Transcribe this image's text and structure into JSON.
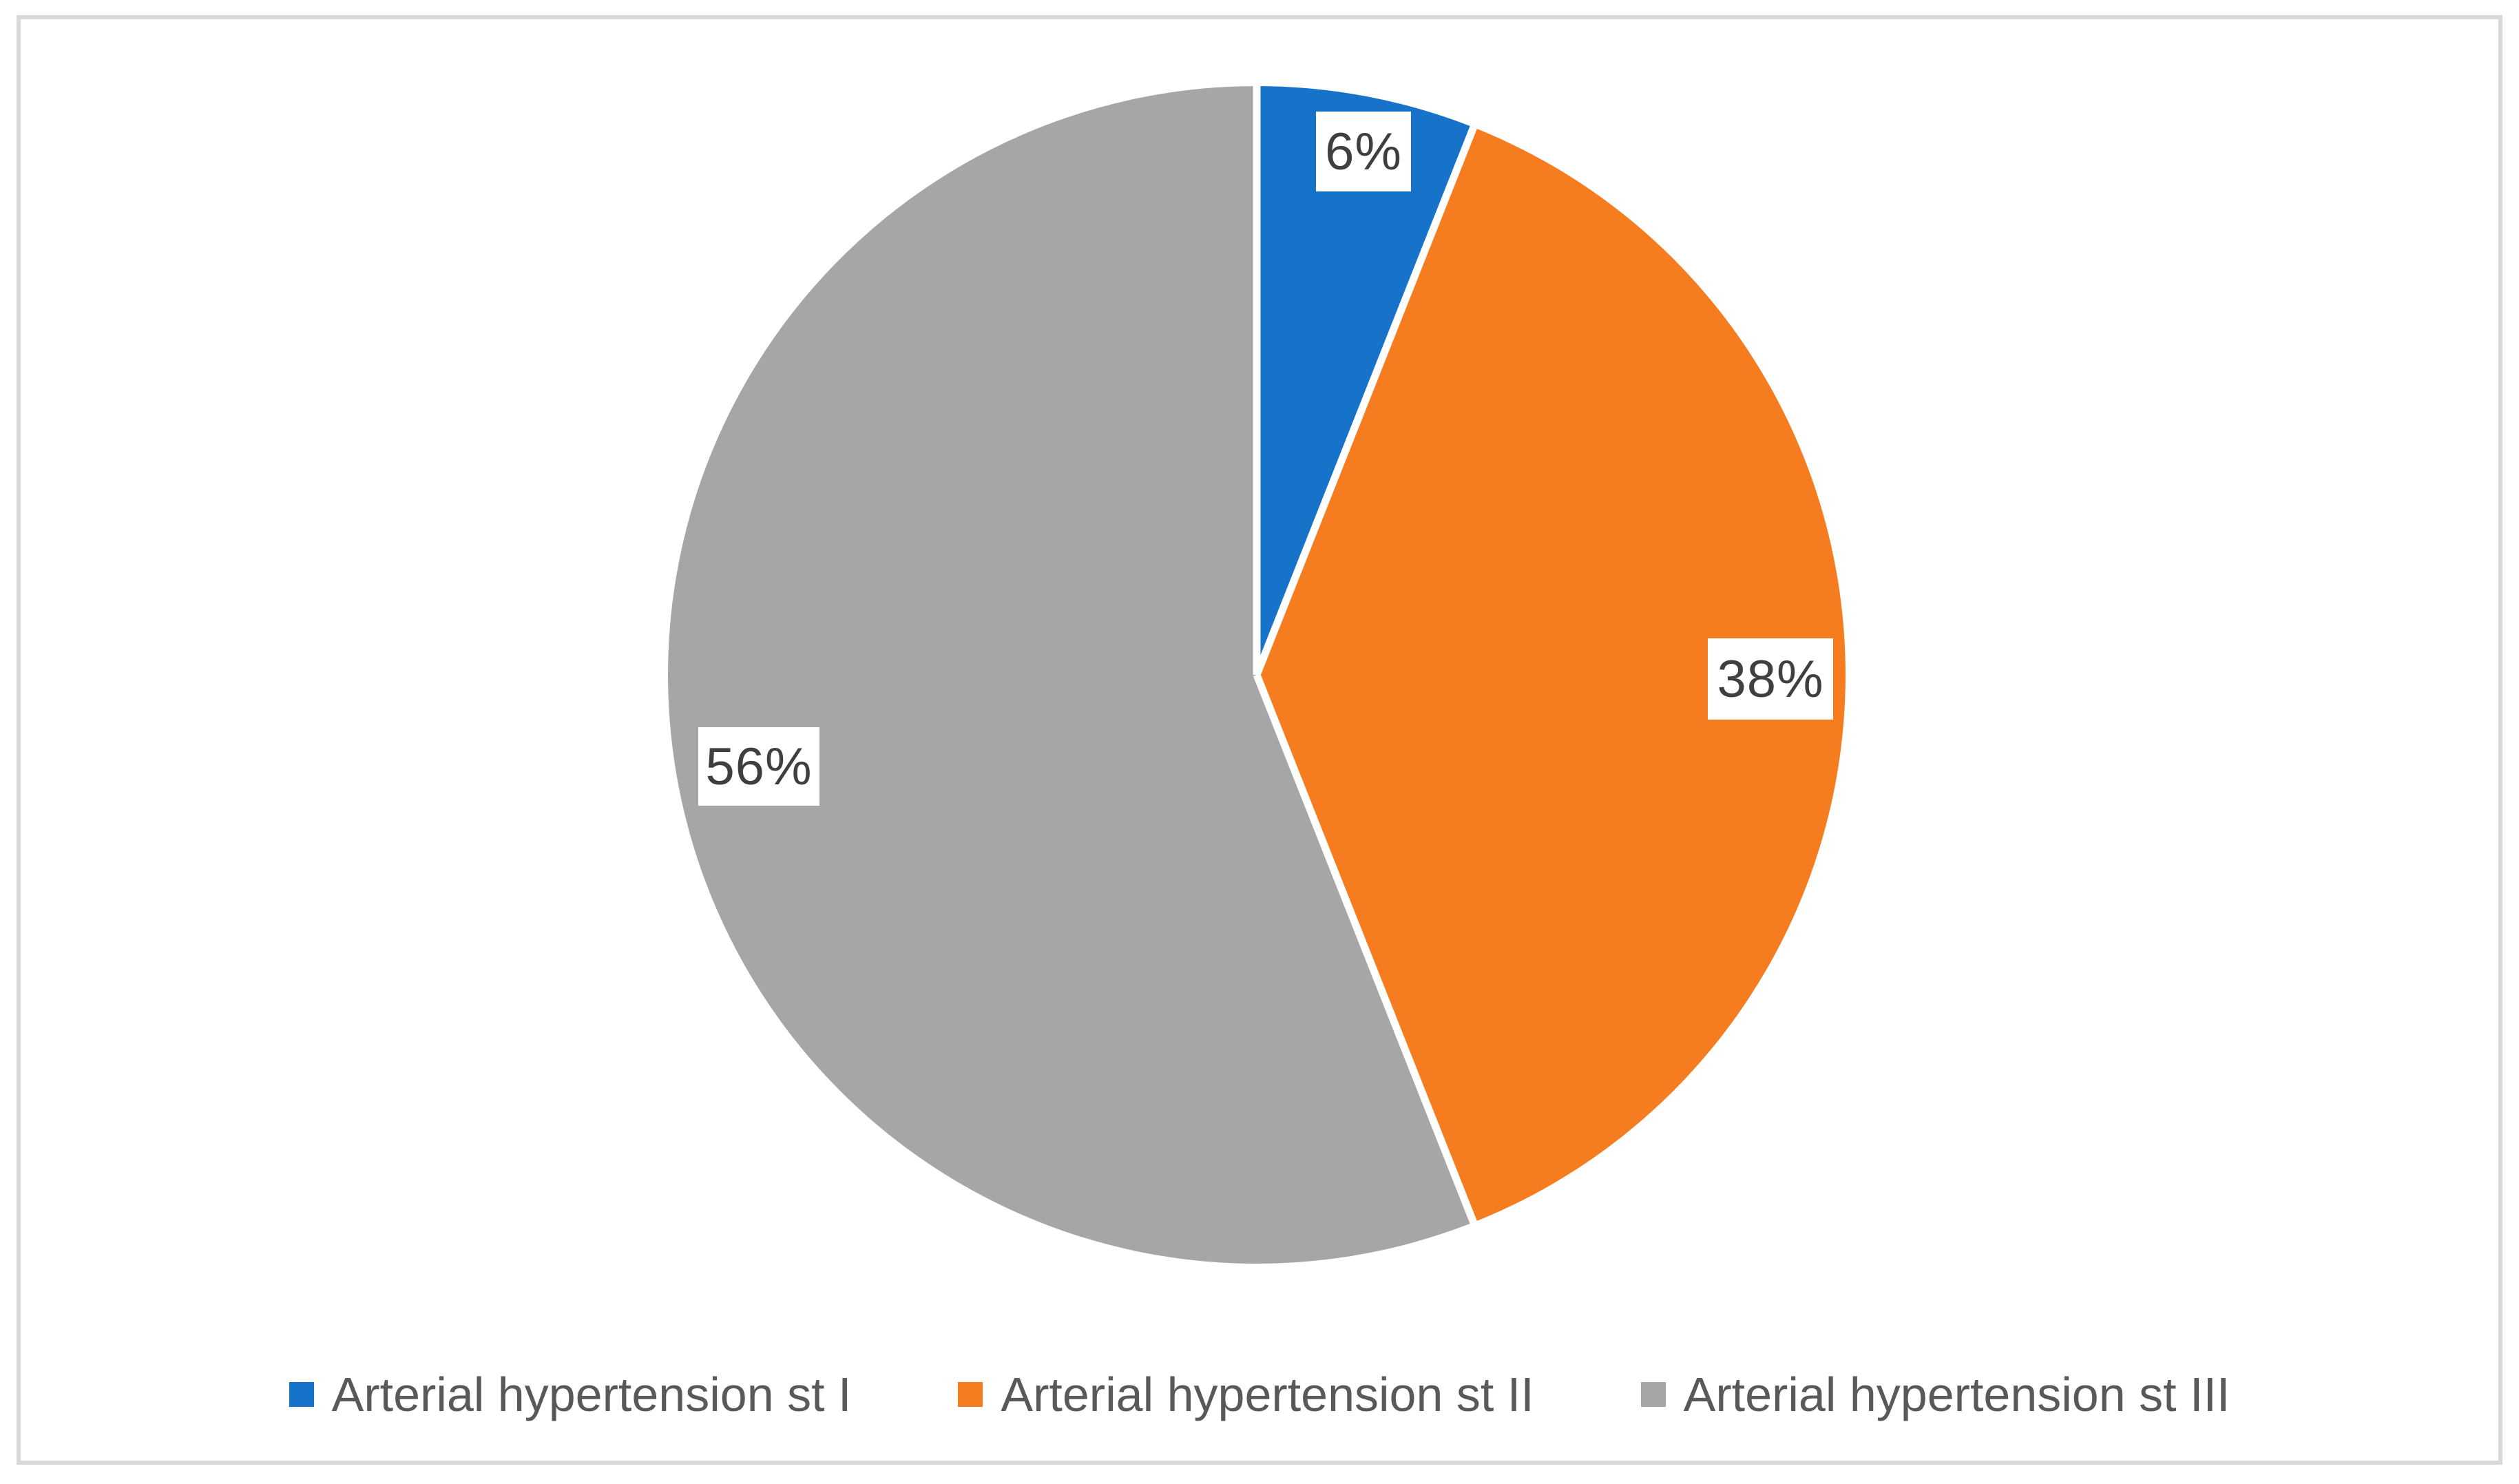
{
  "chart_data": {
    "type": "pie",
    "categories": [
      "Arterial hypertension st I",
      "Arterial hypertension st II",
      "Arterial hypertension st III"
    ],
    "values": [
      6,
      38,
      56
    ],
    "unit": "%",
    "data_labels": [
      "6%",
      "38%",
      "56%"
    ],
    "colors": [
      "#1673C9",
      "#F67D1F",
      "#A6A6A6"
    ],
    "start_angle_deg": 0,
    "direction": "clockwise",
    "legend_position": "bottom",
    "slice_separator_color": "#FFFFFF",
    "data_label_box": "white fill, border colored per slice"
  },
  "style_colors": {
    "label_text": "#3F3F3F",
    "legend_text": "#595959",
    "frame_border": "#D9D9D9",
    "background": "#FFFFFF"
  }
}
